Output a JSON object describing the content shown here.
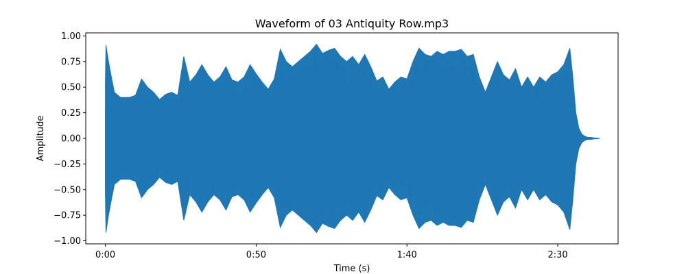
{
  "chart_data": {
    "type": "area",
    "title": "Waveform of 03 Antiquity Row.mp3",
    "xlabel": "Time (s)",
    "ylabel": "Amplitude",
    "xlim": [
      -6.5,
      170
    ],
    "ylim": [
      -1.03,
      1.03
    ],
    "grid": false,
    "x_ticks": [
      {
        "value": 0,
        "label": "0:00"
      },
      {
        "value": 50,
        "label": "0:50"
      },
      {
        "value": 100,
        "label": "1:40"
      },
      {
        "value": 150,
        "label": "2:30"
      }
    ],
    "y_ticks": [
      {
        "value": 1.0,
        "label": "1.00"
      },
      {
        "value": 0.75,
        "label": "0.75"
      },
      {
        "value": 0.5,
        "label": "0.50"
      },
      {
        "value": 0.25,
        "label": "0.25"
      },
      {
        "value": 0.0,
        "label": "0.00"
      },
      {
        "value": -0.25,
        "label": "−0.25"
      },
      {
        "value": -0.5,
        "label": "−0.50"
      },
      {
        "value": -0.75,
        "label": "−0.75"
      },
      {
        "value": -1.0,
        "label": "−1.00"
      }
    ],
    "series": [
      {
        "color": "#1f77b4",
        "envelope": {
          "x": [
            0,
            0.2,
            1,
            2,
            3,
            5,
            8,
            10,
            12,
            14,
            16,
            18,
            20,
            22,
            24,
            26,
            28,
            30,
            32,
            34,
            36,
            38,
            40,
            42,
            44,
            46,
            48,
            50,
            52,
            54,
            56,
            58,
            60,
            62,
            64,
            66,
            68,
            70,
            72,
            74,
            76,
            78,
            80,
            82,
            84,
            86,
            88,
            90,
            92,
            94,
            96,
            98,
            100,
            102,
            104,
            106,
            108,
            110,
            112,
            114,
            116,
            118,
            120,
            122,
            124,
            126,
            128,
            130,
            132,
            134,
            136,
            138,
            140,
            142,
            144,
            146,
            148,
            150,
            152,
            154,
            155,
            156,
            157,
            158,
            159,
            160,
            161,
            162,
            163,
            164
          ],
          "upper": [
            0.55,
            0.91,
            0.76,
            0.6,
            0.45,
            0.4,
            0.4,
            0.42,
            0.58,
            0.5,
            0.45,
            0.38,
            0.43,
            0.45,
            0.42,
            0.8,
            0.55,
            0.62,
            0.72,
            0.62,
            0.55,
            0.6,
            0.7,
            0.57,
            0.55,
            0.6,
            0.72,
            0.63,
            0.55,
            0.48,
            0.58,
            0.87,
            0.75,
            0.7,
            0.75,
            0.8,
            0.85,
            0.92,
            0.83,
            0.86,
            0.88,
            0.8,
            0.75,
            0.8,
            0.72,
            0.82,
            0.7,
            0.56,
            0.6,
            0.48,
            0.55,
            0.6,
            0.58,
            0.75,
            0.88,
            0.82,
            0.8,
            0.85,
            0.82,
            0.85,
            0.85,
            0.87,
            0.8,
            0.82,
            0.6,
            0.45,
            0.6,
            0.75,
            0.62,
            0.57,
            0.68,
            0.5,
            0.6,
            0.5,
            0.6,
            0.55,
            0.62,
            0.65,
            0.72,
            0.88,
            0.6,
            0.25,
            0.1,
            0.04,
            0.02,
            0.01,
            0.01,
            0.005,
            0.003,
            0.0
          ],
          "lower": [
            -0.55,
            -0.92,
            -0.76,
            -0.6,
            -0.45,
            -0.4,
            -0.4,
            -0.42,
            -0.58,
            -0.5,
            -0.45,
            -0.38,
            -0.43,
            -0.45,
            -0.42,
            -0.8,
            -0.55,
            -0.62,
            -0.72,
            -0.62,
            -0.55,
            -0.6,
            -0.7,
            -0.57,
            -0.55,
            -0.6,
            -0.72,
            -0.63,
            -0.55,
            -0.48,
            -0.58,
            -0.87,
            -0.75,
            -0.7,
            -0.75,
            -0.8,
            -0.85,
            -0.92,
            -0.83,
            -0.86,
            -0.88,
            -0.8,
            -0.75,
            -0.8,
            -0.72,
            -0.82,
            -0.7,
            -0.56,
            -0.6,
            -0.48,
            -0.55,
            -0.6,
            -0.58,
            -0.75,
            -0.88,
            -0.82,
            -0.8,
            -0.85,
            -0.82,
            -0.85,
            -0.85,
            -0.87,
            -0.8,
            -0.82,
            -0.6,
            -0.45,
            -0.6,
            -0.75,
            -0.62,
            -0.57,
            -0.68,
            -0.5,
            -0.6,
            -0.5,
            -0.6,
            -0.55,
            -0.62,
            -0.65,
            -0.72,
            -0.89,
            -0.6,
            -0.25,
            -0.1,
            -0.04,
            -0.02,
            -0.01,
            -0.01,
            -0.005,
            -0.003,
            0.0
          ]
        }
      }
    ]
  }
}
